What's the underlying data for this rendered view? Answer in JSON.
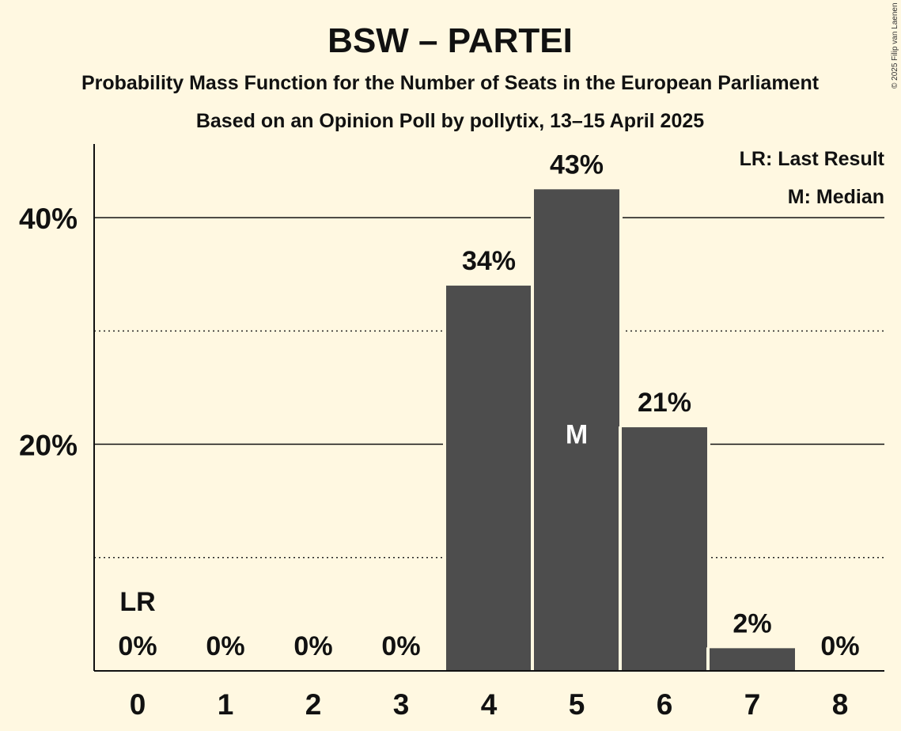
{
  "chart_data": {
    "type": "bar",
    "title": "BSW – PARTEI",
    "subtitle": "Probability Mass Function for the Number of Seats in the European Parliament",
    "subtitle2": "Based on an Opinion Poll by pollytix, 13–15 April 2025",
    "copyright": "© 2025 Filip van Laenen",
    "categories": [
      "0",
      "1",
      "2",
      "3",
      "4",
      "5",
      "6",
      "7",
      "8"
    ],
    "values": [
      0,
      0,
      0,
      0,
      34,
      42.5,
      21.5,
      2,
      0
    ],
    "value_labels": [
      "0%",
      "0%",
      "0%",
      "0%",
      "34%",
      "43%",
      "21%",
      "2%",
      "0%"
    ],
    "ylim": [
      0,
      46.5
    ],
    "yticks": [
      {
        "value": 20,
        "label": "20%"
      },
      {
        "value": 40,
        "label": "40%"
      }
    ],
    "minor_gridlines": [
      10,
      30
    ],
    "last_result": {
      "index": 0,
      "marker": "LR"
    },
    "median": {
      "index": 5,
      "marker": "M"
    },
    "legend": [
      "LR: Last Result",
      "M: Median"
    ],
    "legend_position": "top-right",
    "bar_color": "#4d4d4d",
    "background_color": "#fff8e1"
  }
}
